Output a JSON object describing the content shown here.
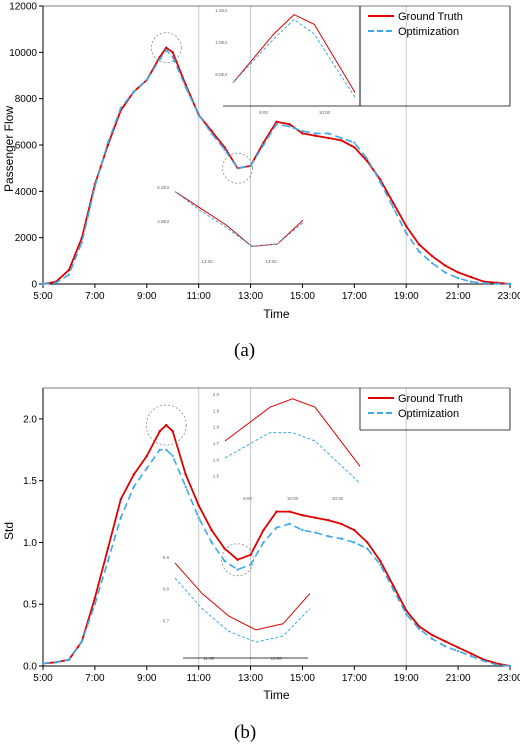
{
  "chart_data": [
    {
      "type": "line",
      "panel_label": "(a)",
      "xlabel": "Time",
      "ylabel": "Passenger Flow",
      "x_ticks": [
        "5:00",
        "7:00",
        "9:00",
        "11:00",
        "13:00",
        "15:00",
        "17:00",
        "19:00",
        "21:00",
        "23:00"
      ],
      "y_ticks": [
        "0",
        "2000",
        "4000",
        "6000",
        "8000",
        "10000",
        "12000"
      ],
      "xlim": [
        "5:00",
        "23:00"
      ],
      "ylim": [
        0,
        12000
      ],
      "grid": "vertical lines at 11:00, 13:00, 19:00",
      "legend": "top-right",
      "x": [
        "5:00",
        "5:30",
        "6:00",
        "6:30",
        "7:00",
        "7:30",
        "8:00",
        "8:30",
        "9:00",
        "9:30",
        "9:45",
        "10:00",
        "10:30",
        "11:00",
        "11:30",
        "12:00",
        "12:30",
        "13:00",
        "13:30",
        "14:00",
        "14:30",
        "15:00",
        "15:30",
        "16:00",
        "16:30",
        "17:00",
        "17:30",
        "18:00",
        "18:30",
        "19:00",
        "19:30",
        "20:00",
        "20:30",
        "21:00",
        "21:30",
        "22:00",
        "22:30",
        "23:00"
      ],
      "series": [
        {
          "name": "Ground Truth",
          "color": "#e00000",
          "style": "solid",
          "values": [
            0,
            100,
            600,
            2000,
            4300,
            6000,
            7500,
            8300,
            8800,
            9800,
            10200,
            10000,
            8600,
            7300,
            6600,
            5900,
            5000,
            5100,
            6100,
            7000,
            6900,
            6500,
            6400,
            6300,
            6200,
            5900,
            5300,
            4500,
            3500,
            2500,
            1700,
            1200,
            800,
            500,
            300,
            100,
            50,
            0
          ]
        },
        {
          "name": "Optimization",
          "color": "#3fa9e8",
          "style": "dashed",
          "values": [
            0,
            50,
            400,
            1800,
            4200,
            6100,
            7600,
            8300,
            8800,
            9700,
            10100,
            9800,
            8500,
            7300,
            6500,
            5800,
            5000,
            5100,
            6000,
            6900,
            6800,
            6600,
            6500,
            6500,
            6300,
            6100,
            5400,
            4400,
            3300,
            2200,
            1400,
            900,
            500,
            250,
            100,
            40,
            10,
            0
          ]
        }
      ],
      "insets": [
        {
          "labels": [
            "1.2E4",
            "1.0E4",
            "8.0E3",
            "9:00",
            "10:00"
          ]
        },
        {
          "labels": [
            "5.2E3",
            "4.8E3",
            "12:00",
            "13:00"
          ]
        }
      ]
    },
    {
      "type": "line",
      "panel_label": "(b)",
      "xlabel": "Time",
      "ylabel": "Std",
      "x_ticks": [
        "5:00",
        "7:00",
        "9:00",
        "11:00",
        "13:00",
        "15:00",
        "17:00",
        "19:00",
        "21:00",
        "23:00"
      ],
      "y_ticks": [
        "0.0",
        "0.5",
        "1.0",
        "1.5",
        "2.0"
      ],
      "xlim": [
        "5:00",
        "23:00"
      ],
      "ylim": [
        0,
        2.25
      ],
      "grid": "vertical lines at 11:00, 13:00, 19:00",
      "legend": "top-right",
      "x": [
        "5:00",
        "5:30",
        "6:00",
        "6:30",
        "7:00",
        "7:30",
        "8:00",
        "8:30",
        "9:00",
        "9:30",
        "9:45",
        "10:00",
        "10:30",
        "11:00",
        "11:30",
        "12:00",
        "12:30",
        "13:00",
        "13:30",
        "14:00",
        "14:30",
        "15:00",
        "15:30",
        "16:00",
        "16:30",
        "17:00",
        "17:30",
        "18:00",
        "18:30",
        "19:00",
        "19:30",
        "20:00",
        "20:30",
        "21:00",
        "21:30",
        "22:00",
        "22:30",
        "23:00"
      ],
      "series": [
        {
          "name": "Ground Truth",
          "color": "#e00000",
          "style": "solid",
          "values": [
            0.02,
            0.03,
            0.05,
            0.2,
            0.55,
            0.95,
            1.35,
            1.55,
            1.7,
            1.9,
            1.95,
            1.9,
            1.55,
            1.3,
            1.1,
            0.95,
            0.86,
            0.9,
            1.1,
            1.25,
            1.25,
            1.22,
            1.2,
            1.18,
            1.15,
            1.1,
            1.0,
            0.85,
            0.65,
            0.45,
            0.32,
            0.25,
            0.2,
            0.15,
            0.1,
            0.05,
            0.02,
            0.0
          ]
        },
        {
          "name": "Optimization",
          "color": "#3fa9e8",
          "style": "dashed",
          "values": [
            0.02,
            0.03,
            0.05,
            0.2,
            0.5,
            0.85,
            1.2,
            1.45,
            1.6,
            1.75,
            1.75,
            1.7,
            1.45,
            1.2,
            1.0,
            0.85,
            0.78,
            0.82,
            1.0,
            1.12,
            1.15,
            1.1,
            1.08,
            1.05,
            1.03,
            1.0,
            0.95,
            0.82,
            0.62,
            0.42,
            0.3,
            0.22,
            0.16,
            0.12,
            0.08,
            0.04,
            0.01,
            0.0
          ]
        }
      ],
      "insets": [
        {
          "labels": [
            "2.0",
            "1.9",
            "1.8",
            "1.7",
            "1.6",
            "1.5",
            "9:00",
            "10:00",
            "10:30"
          ]
        },
        {
          "labels": [
            "0.9",
            "0.8",
            "0.7",
            "11:00",
            "13:00"
          ]
        }
      ]
    }
  ]
}
